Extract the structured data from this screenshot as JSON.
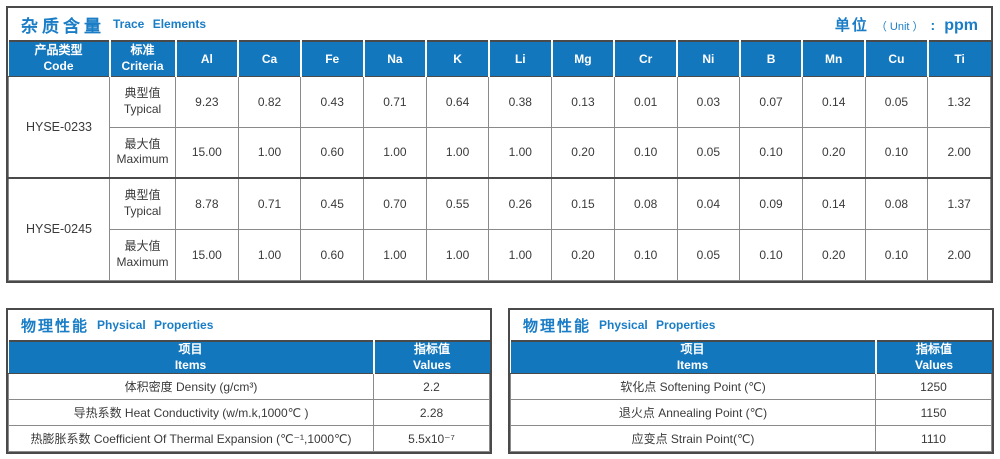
{
  "colors": {
    "header_blue": "#1377BD",
    "title_blue": "#1A7DC6",
    "border_dark": "#4A4A4A",
    "border_gray": "#8A8A8A"
  },
  "trace_table": {
    "title_cn": "杂质含量",
    "title_en": "Trace Elements",
    "unit": {
      "label_cn": "单位",
      "label_en": "（ Unit ）",
      "colon": ":",
      "value": "ppm"
    },
    "col_headers": {
      "code_cn": "产品类型",
      "code_en": "Code",
      "criteria_cn": "标准",
      "criteria_en": "Criteria"
    },
    "elements": [
      "Al",
      "Ca",
      "Fe",
      "Na",
      "K",
      "Li",
      "Mg",
      "Cr",
      "Ni",
      "B",
      "Mn",
      "Cu",
      "Ti"
    ],
    "products": [
      {
        "code": "HYSE-0233",
        "rows": [
          {
            "label_cn": "典型值",
            "label_en": "Typical",
            "values": [
              "9.23",
              "0.82",
              "0.43",
              "0.71",
              "0.64",
              "0.38",
              "0.13",
              "0.01",
              "0.03",
              "0.07",
              "0.14",
              "0.05",
              "1.32"
            ]
          },
          {
            "label_cn": "最大值",
            "label_en": "Maximum",
            "values": [
              "15.00",
              "1.00",
              "0.60",
              "1.00",
              "1.00",
              "1.00",
              "0.20",
              "0.10",
              "0.05",
              "0.10",
              "0.20",
              "0.10",
              "2.00"
            ]
          }
        ]
      },
      {
        "code": "HYSE-0245",
        "rows": [
          {
            "label_cn": "典型值",
            "label_en": "Typical",
            "values": [
              "8.78",
              "0.71",
              "0.45",
              "0.70",
              "0.55",
              "0.26",
              "0.15",
              "0.08",
              "0.04",
              "0.09",
              "0.14",
              "0.08",
              "1.37"
            ]
          },
          {
            "label_cn": "最大值",
            "label_en": "Maximum",
            "values": [
              "15.00",
              "1.00",
              "0.60",
              "1.00",
              "1.00",
              "1.00",
              "0.20",
              "0.10",
              "0.05",
              "0.10",
              "0.20",
              "0.10",
              "2.00"
            ]
          }
        ]
      }
    ]
  },
  "physical_tables": [
    {
      "title_cn": "物理性能",
      "title_en": "Physical Properties",
      "col_headers": {
        "items_cn": "项目",
        "items_en": "Items",
        "values_cn": "指标值",
        "values_en": "Values"
      },
      "rows": [
        {
          "item": "体积密度 Density (g/cm³)",
          "value": "2.2"
        },
        {
          "item": "导热系数 Heat Conductivity (w/m.k,1000℃ )",
          "value": "2.28"
        },
        {
          "item": "热膨胀系数 Coefficient Of Thermal Expansion (℃⁻¹,1000℃)",
          "value": "5.5x10⁻⁷"
        }
      ]
    },
    {
      "title_cn": "物理性能",
      "title_en": "Physical Properties",
      "col_headers": {
        "items_cn": "项目",
        "items_en": "Items",
        "values_cn": "指标值",
        "values_en": "Values"
      },
      "rows": [
        {
          "item": "软化点 Softening Point (℃)",
          "value": "1250"
        },
        {
          "item": "退火点 Annealing Point (℃)",
          "value": "1150"
        },
        {
          "item": "应变点 Strain Point(℃)",
          "value": "1110"
        }
      ]
    }
  ]
}
